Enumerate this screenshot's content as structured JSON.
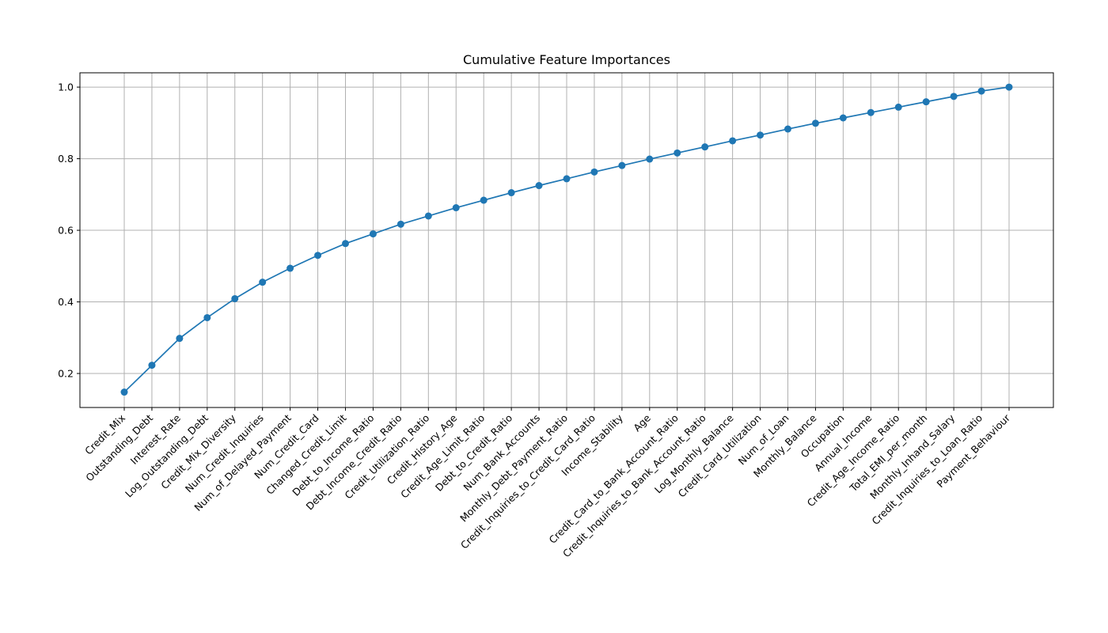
{
  "chart_data": {
    "type": "line",
    "title": "Cumulative Feature Importances",
    "xlabel": "",
    "ylabel": "",
    "grid": true,
    "ylim": [
      0.105,
      1.04
    ],
    "yticks": [
      "0.2",
      "0.4",
      "0.6",
      "0.8",
      "1.0"
    ],
    "color": "#1f77b4",
    "categories": [
      "Credit_Mix",
      "Outstanding_Debt",
      "Interest_Rate",
      "Log_Outstanding_Debt",
      "Credit_Mix_Diversity",
      "Num_Credit_Inquiries",
      "Num_of_Delayed_Payment",
      "Num_Credit_Card",
      "Changed_Credit_Limit",
      "Debt_to_Income_Ratio",
      "Debt_Income_Credit_Ratio",
      "Credit_Utilization_Ratio",
      "Credit_History_Age",
      "Credit_Age_Limit_Ratio",
      "Debt_to_Credit_Ratio",
      "Num_Bank_Accounts",
      "Monthly_Debt_Payment_Ratio",
      "Credit_Inquiries_to_Credit_Card_Ratio",
      "Income_Stability",
      "Age",
      "Credit_Card_to_Bank_Account_Ratio",
      "Credit_Inquiries_to_Bank_Account_Ratio",
      "Log_Monthly_Balance",
      "Credit_Card_Utilization",
      "Num_of_Loan",
      "Monthly_Balance",
      "Occupation",
      "Annual_Income",
      "Credit_Age_Income_Ratio",
      "Total_EMI_per_month",
      "Monthly_Inhand_Salary",
      "Credit_Inquiries_to_Loan_Ratio",
      "Payment_Behaviour"
    ],
    "values": [
      0.148,
      0.223,
      0.298,
      0.356,
      0.409,
      0.455,
      0.494,
      0.53,
      0.563,
      0.59,
      0.617,
      0.64,
      0.663,
      0.684,
      0.705,
      0.725,
      0.744,
      0.763,
      0.781,
      0.799,
      0.816,
      0.833,
      0.85,
      0.866,
      0.883,
      0.899,
      0.914,
      0.929,
      0.944,
      0.959,
      0.974,
      0.989,
      1.0
    ]
  }
}
